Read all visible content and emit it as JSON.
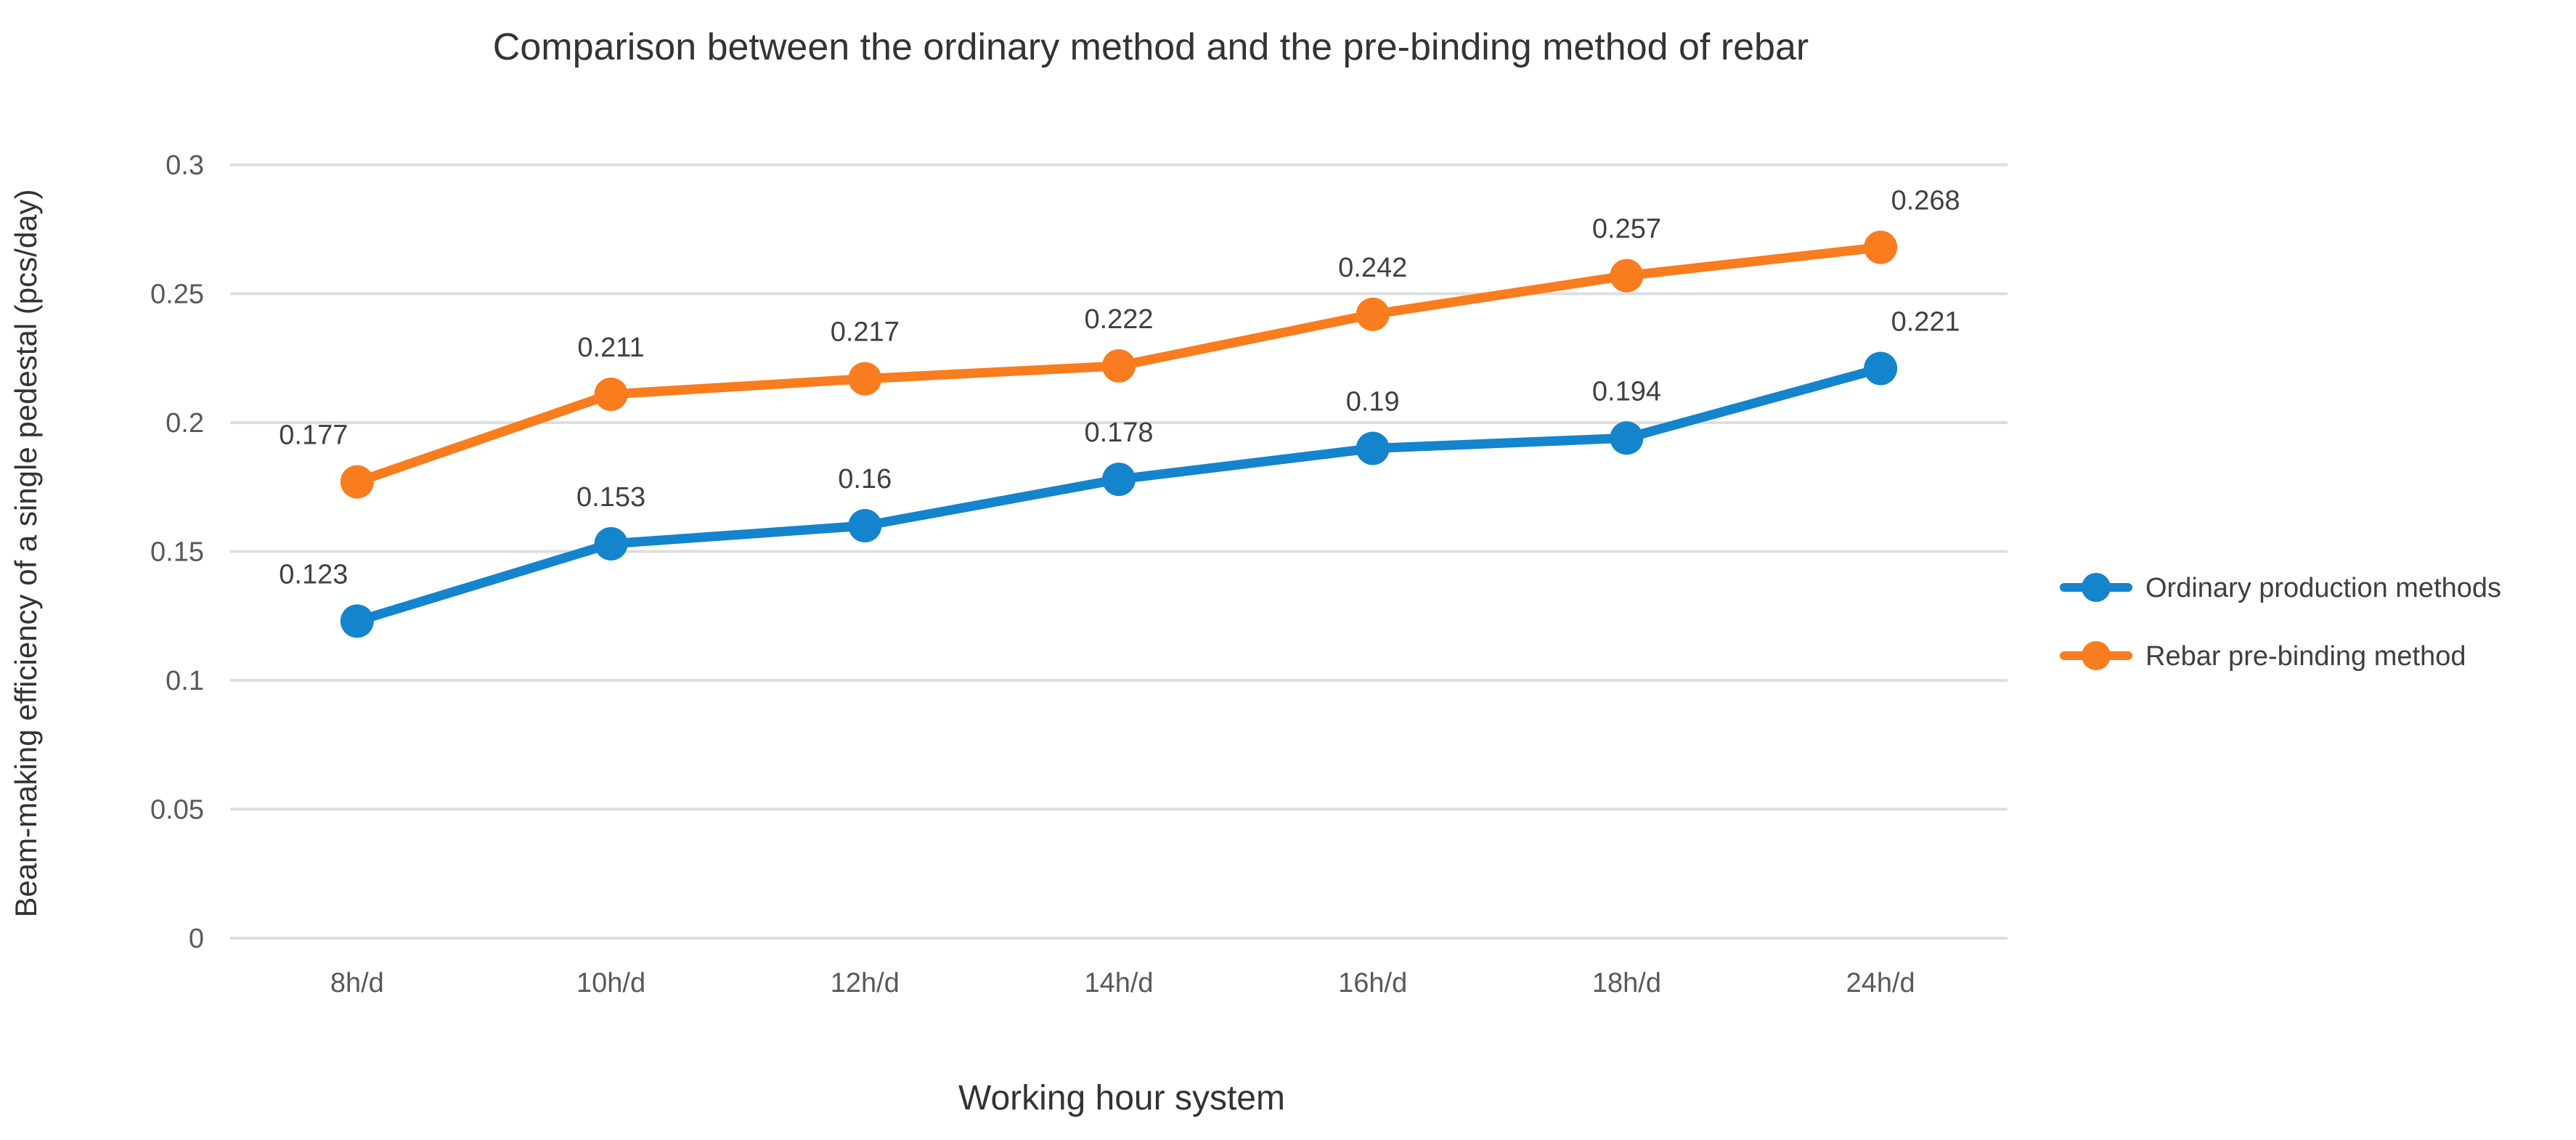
{
  "chart_data": {
    "type": "line",
    "title": "Comparison between the ordinary method and the pre-binding method of rebar",
    "xlabel": "Working hour  system",
    "ylabel": "Beam-making efficiency of a single pedestal (pcs/day)",
    "categories": [
      "8h/d",
      "10h/d",
      "12h/d",
      "14h/d",
      "16h/d",
      "18h/d",
      "24h/d"
    ],
    "series": [
      {
        "name": "Ordinary production methods",
        "color": "#1484CC",
        "values": [
          0.123,
          0.153,
          0.16,
          0.178,
          0.19,
          0.194,
          0.221
        ]
      },
      {
        "name": "Rebar pre-binding method",
        "color": "#F97C1E",
        "values": [
          0.177,
          0.211,
          0.217,
          0.222,
          0.242,
          0.257,
          0.268
        ]
      }
    ],
    "yticks": [
      0,
      0.05,
      0.1,
      0.15,
      0.2,
      0.25,
      0.3
    ],
    "ylim": [
      0,
      0.3
    ],
    "grid": true,
    "data_labels": true,
    "legend_position": "right",
    "colors": {
      "background": "#FFFFFF",
      "grid": "#DEDEDE",
      "tick_text": "#595959",
      "data_label_text": "#404040",
      "title_text": "#333333",
      "legend_text": "#3F3F3F"
    }
  }
}
